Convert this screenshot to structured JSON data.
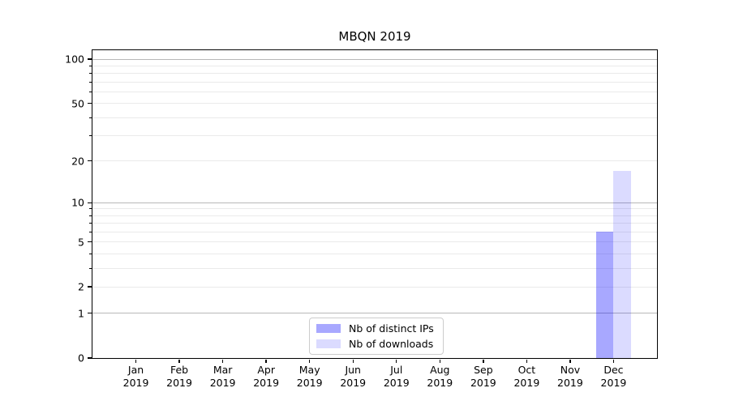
{
  "chart_data": {
    "type": "bar",
    "title": "MBQN 2019",
    "x_months": [
      "Jan",
      "Feb",
      "Mar",
      "Apr",
      "May",
      "Jun",
      "Jul",
      "Aug",
      "Sep",
      "Oct",
      "Nov",
      "Dec"
    ],
    "x_year": "2019",
    "series": [
      {
        "name": "Nb of distinct IPs",
        "base_color": "#0000ff",
        "alpha": 0.34,
        "rendered_hex": "#a9a9fa",
        "values": [
          0,
          0,
          0,
          0,
          0,
          0,
          0,
          0,
          0,
          0,
          0,
          6
        ]
      },
      {
        "name": "Nb of downloads",
        "base_color": "#0000ff",
        "alpha": 0.14,
        "rendered_hex": "#dbdbfa",
        "values": [
          0,
          0,
          0,
          0,
          0,
          0,
          0,
          0,
          0,
          0,
          0,
          17
        ]
      }
    ],
    "scale": "log1p",
    "ylim": [
      0,
      115
    ],
    "yticks": [
      0,
      1,
      2,
      5,
      10,
      20,
      50,
      100
    ],
    "major_gridlines": [
      1,
      10,
      100
    ],
    "minor_gridlines": [
      2,
      3,
      4,
      5,
      6,
      7,
      8,
      9,
      20,
      30,
      40,
      50,
      60,
      70,
      80,
      90
    ],
    "grid": true,
    "legend_position": "lower-center",
    "colors": {
      "major_grid": "#b8b8b8",
      "minor_grid": "#eaeaea",
      "spine": "#000000",
      "legend_border": "#cccccc"
    }
  }
}
